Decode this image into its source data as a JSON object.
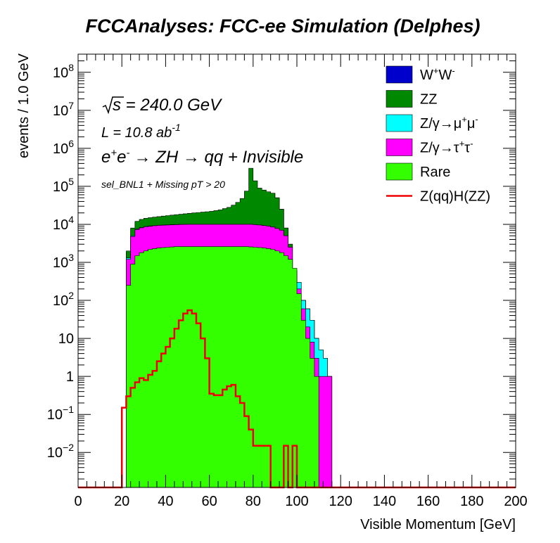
{
  "chart_data": {
    "type": "area",
    "title": "FCCAnalyses: FCC-ee Simulation (Delphes)",
    "xlabel": "Visible Momentum [GeV]",
    "ylabel": "events / 1.0 GeV",
    "xlim": [
      0,
      200
    ],
    "ylim": [
      0.0012,
      300000000
    ],
    "yscale": "log",
    "x_ticks": [
      0,
      20,
      40,
      60,
      80,
      100,
      120,
      140,
      160,
      180,
      200
    ],
    "y_ticks": [
      {
        "value": 0.01,
        "base": "10",
        "exp": "−2"
      },
      {
        "value": 0.1,
        "base": "10",
        "exp": "−1"
      },
      {
        "value": 1,
        "base": "1",
        "exp": ""
      },
      {
        "value": 10,
        "base": "10",
        "exp": ""
      },
      {
        "value": 100,
        "base": "10",
        "exp": "2"
      },
      {
        "value": 1000,
        "base": "10",
        "exp": "3"
      },
      {
        "value": 10000,
        "base": "10",
        "exp": "4"
      },
      {
        "value": 100000,
        "base": "10",
        "exp": "5"
      },
      {
        "value": 1000000,
        "base": "10",
        "exp": "6"
      },
      {
        "value": 10000000,
        "base": "10",
        "exp": "7"
      },
      {
        "value": 100000000,
        "base": "10",
        "exp": "8"
      }
    ],
    "annotations": {
      "sqrt_s": "s = 240.0 GeV",
      "lumi_main": "L = 10.8 ab",
      "lumi_sup": "-1",
      "process": "→ ZH  → qq + Invisible",
      "selection": "sel_BNL1 + Missing pT > 20"
    },
    "legend_position": "top-right",
    "stack_note": "stacked cumulative totals, bottom to top: Rare, Z/γ→τ+τ-, Z/γ→μ+μ-, ZZ, W+W-",
    "series": [
      {
        "name": "W+W-",
        "color": "#0000cc",
        "x": [
          20,
          22,
          24,
          26,
          28,
          30,
          32,
          34,
          36,
          38,
          40,
          42,
          44,
          46,
          48,
          50,
          52,
          54,
          56,
          58,
          60,
          62,
          64,
          66,
          68,
          70,
          72,
          74,
          76,
          78,
          80,
          82,
          84,
          86,
          88,
          90,
          92,
          94,
          96,
          98,
          100,
          102,
          104,
          106,
          108,
          110,
          112,
          114,
          116,
          118
        ],
        "y": [
          0,
          1800,
          7500,
          11000,
          12500,
          13500,
          14000,
          14500,
          15000,
          15400,
          15800,
          16200,
          16600,
          17000,
          17400,
          17800,
          18200,
          18600,
          19000,
          19500,
          20000,
          20500,
          21000,
          22000,
          23000,
          24000,
          26000,
          28000,
          31000,
          35000,
          40000,
          50000,
          62000,
          70000,
          65000,
          50000,
          25000,
          8000,
          3000,
          600,
          300,
          100,
          60,
          30,
          10,
          5,
          3,
          1,
          0,
          0
        ]
      },
      {
        "name": "ZZ",
        "color": "#008800",
        "x": [
          20,
          22,
          24,
          26,
          28,
          30,
          32,
          34,
          36,
          38,
          40,
          42,
          44,
          46,
          48,
          50,
          52,
          54,
          56,
          58,
          60,
          62,
          64,
          66,
          68,
          70,
          72,
          74,
          76,
          78,
          80,
          82,
          84,
          86,
          88,
          90,
          92,
          94,
          96,
          98,
          100,
          102,
          104,
          106,
          108,
          110,
          112,
          114,
          116,
          118
        ],
        "y": [
          0,
          2000,
          8000,
          12000,
          13500,
          14500,
          15000,
          15500,
          16000,
          16500,
          17000,
          17500,
          18000,
          18500,
          19000,
          19500,
          20000,
          20500,
          21000,
          21500,
          22000,
          23000,
          24000,
          26000,
          28000,
          32000,
          38000,
          48000,
          75000,
          300000,
          140000,
          90000,
          80000,
          72000,
          66000,
          50000,
          25000,
          8000,
          3000,
          600,
          300,
          100,
          60,
          30,
          10,
          5,
          3,
          1,
          0,
          0
        ]
      },
      {
        "name": "Z/γ→μ+μ-",
        "color": "#00ffff",
        "x": [
          20,
          22,
          24,
          26,
          28,
          30,
          32,
          34,
          36,
          38,
          40,
          42,
          44,
          46,
          48,
          50,
          52,
          54,
          56,
          58,
          60,
          62,
          64,
          66,
          68,
          70,
          72,
          74,
          76,
          78,
          80,
          82,
          84,
          86,
          88,
          90,
          92,
          94,
          96,
          98,
          100,
          102,
          104,
          106,
          108,
          110,
          112,
          114,
          116,
          118
        ],
        "y": [
          0,
          1300,
          5000,
          7500,
          8300,
          8800,
          9100,
          9300,
          9500,
          9600,
          9700,
          9800,
          9900,
          10000,
          10000,
          10000,
          10000,
          10000,
          10000,
          10000,
          10000,
          10000,
          10000,
          10000,
          10000,
          10000,
          10000,
          10000,
          10000,
          10000,
          9800,
          9600,
          9300,
          9000,
          8500,
          7800,
          7000,
          5000,
          2500,
          600,
          300,
          100,
          60,
          30,
          10,
          5,
          3,
          1,
          0,
          0
        ]
      },
      {
        "name": "Z/γ→τ+τ-",
        "color": "#ff00ff",
        "x": [
          20,
          22,
          24,
          26,
          28,
          30,
          32,
          34,
          36,
          38,
          40,
          42,
          44,
          46,
          48,
          50,
          52,
          54,
          56,
          58,
          60,
          62,
          64,
          66,
          68,
          70,
          72,
          74,
          76,
          78,
          80,
          82,
          84,
          86,
          88,
          90,
          92,
          94,
          96,
          98,
          100,
          102,
          104,
          106,
          108,
          110,
          112,
          114,
          116,
          118
        ],
        "y": [
          0,
          1200,
          4800,
          7300,
          8100,
          8600,
          8900,
          9200,
          9400,
          9500,
          9600,
          9700,
          9800,
          9900,
          9950,
          10000,
          10000,
          10000,
          10000,
          10000,
          10000,
          10000,
          10000,
          10000,
          10000,
          10000,
          10000,
          10000,
          10000,
          10000,
          9800,
          9600,
          9300,
          9000,
          8500,
          7800,
          7000,
          5000,
          2500,
          600,
          200,
          60,
          20,
          8,
          3,
          1,
          1,
          1,
          0,
          0
        ]
      },
      {
        "name": "Rare",
        "color": "#33ff00",
        "x": [
          20,
          22,
          24,
          26,
          28,
          30,
          32,
          34,
          36,
          38,
          40,
          42,
          44,
          46,
          48,
          50,
          52,
          54,
          56,
          58,
          60,
          62,
          64,
          66,
          68,
          70,
          72,
          74,
          76,
          78,
          80,
          82,
          84,
          86,
          88,
          90,
          92,
          94,
          96,
          98,
          100,
          102,
          104,
          106,
          108,
          110,
          112,
          114,
          116,
          118
        ],
        "y": [
          0,
          250,
          900,
          1500,
          1800,
          2000,
          2200,
          2300,
          2400,
          2450,
          2500,
          2550,
          2600,
          2600,
          2600,
          2600,
          2600,
          2600,
          2600,
          2600,
          2600,
          2600,
          2600,
          2600,
          2600,
          2600,
          2600,
          2600,
          2600,
          2550,
          2500,
          2450,
          2400,
          2300,
          2200,
          2000,
          1800,
          1500,
          1200,
          700,
          150,
          30,
          10,
          3,
          1,
          0,
          0,
          0,
          0,
          0
        ]
      },
      {
        "name": "Z(qq)H(ZZ)",
        "color": "#ee0000",
        "x": [
          20,
          22,
          24,
          26,
          28,
          30,
          32,
          34,
          36,
          38,
          40,
          42,
          44,
          46,
          48,
          50,
          52,
          54,
          56,
          58,
          60,
          62,
          64,
          66,
          68,
          70,
          72,
          74,
          76,
          78,
          80,
          82,
          84,
          86,
          88,
          90,
          92,
          94,
          96,
          98,
          100,
          102,
          104,
          106,
          108,
          110
        ],
        "y": [
          0.15,
          0.3,
          0.5,
          0.7,
          0.9,
          0.8,
          1.1,
          1.4,
          2.5,
          4,
          6,
          10,
          18,
          30,
          45,
          55,
          45,
          25,
          10,
          3,
          0.35,
          0.32,
          0.32,
          0.45,
          0.55,
          0.6,
          0.3,
          0.2,
          0.09,
          0.04,
          0.015,
          0.015,
          0.015,
          0.015,
          0.0012,
          0.0012,
          0.0012,
          0.015,
          0.0012,
          0.015,
          0.0012,
          0.0012,
          0.0012,
          0.0012,
          0.0012,
          0.0012
        ]
      }
    ]
  }
}
